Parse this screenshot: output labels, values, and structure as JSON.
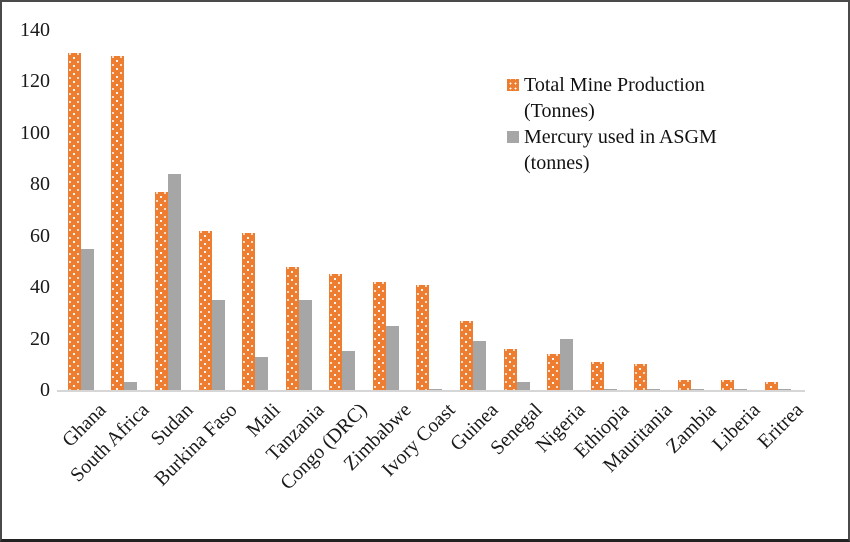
{
  "figure": {
    "background_color": "#FFFFFF",
    "frame_color": "#4A4A4A"
  },
  "legend": {
    "position": "top-right-inside",
    "items": [
      {
        "label": "Total Mine Production (Tonnes)",
        "lines": [
          "Total Mine Production",
          "(Tonnes)"
        ],
        "swatch": "orange-dotted-square",
        "color": "#ED7D31"
      },
      {
        "label": "Mercury used in ASGM (tonnes)",
        "lines": [
          "Mercury used in ASGM",
          "(tonnes)"
        ],
        "swatch": "gray-solid-square",
        "color": "#A6A6A6"
      }
    ]
  },
  "chart_data": {
    "type": "bar",
    "title": "",
    "xlabel": "",
    "ylabel": "",
    "categories": [
      "Ghana",
      "South Africa",
      "Sudan",
      "Burkina Faso",
      "Mali",
      "Tanzania",
      "Congo (DRC)",
      "Zimbabwe",
      "Ivory Coast",
      "Guinea",
      "Senegal",
      "Nigeria",
      "Ethiopia",
      "Mauritania",
      "Zambia",
      "Liberia",
      "Eritrea"
    ],
    "series": [
      {
        "name": "Total Mine Production (Tonnes)",
        "color": "#ED7D31",
        "pattern": "white-dots",
        "values": [
          131,
          130,
          77,
          62,
          61,
          48,
          45,
          42,
          41,
          27,
          16,
          14,
          11,
          10,
          4,
          4,
          3
        ]
      },
      {
        "name": "Mercury used in ASGM (tonnes)",
        "color": "#A6A6A6",
        "pattern": "solid",
        "values": [
          55,
          3,
          84,
          35,
          13,
          35,
          15,
          25,
          0.5,
          19,
          3,
          20,
          0.5,
          0.5,
          0.5,
          0.5,
          0.5
        ]
      }
    ],
    "ylim": [
      0,
      140
    ],
    "yticks": [
      0,
      20,
      40,
      60,
      80,
      100,
      120,
      140
    ],
    "grid": false,
    "x_tick_rotation_deg": 45,
    "axis_line_color": "#D6D6D6",
    "tick_label_color": "#1A1A1A"
  }
}
